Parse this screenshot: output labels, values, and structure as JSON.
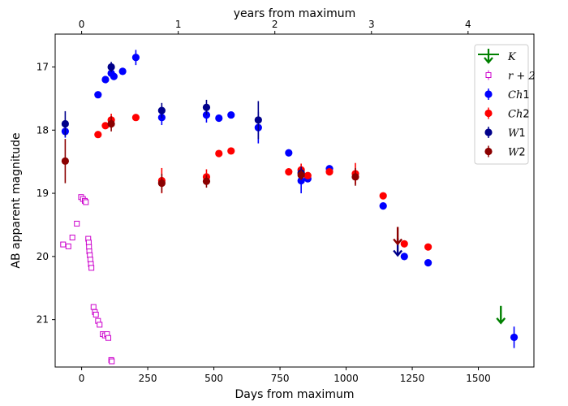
{
  "chart_data": {
    "type": "scatter",
    "xlabel": "Days from maximum",
    "ylabel": "AB apparent magnitude",
    "top_xlabel": "years from maximum",
    "xlim": [
      -100,
      1710
    ],
    "ylim": [
      21.75,
      16.48
    ],
    "y_inverted": true,
    "x_ticks": [
      0,
      250,
      500,
      750,
      1000,
      1250,
      1500
    ],
    "x_tick_labels": [
      "0",
      "250",
      "500",
      "750",
      "1000",
      "1250",
      "1500"
    ],
    "y_ticks": [
      17,
      18,
      19,
      20,
      21
    ],
    "y_tick_labels": [
      "17",
      "18",
      "19",
      "20",
      "21"
    ],
    "top_ticks_years": [
      0,
      1,
      2,
      3,
      4
    ],
    "top_tick_labels": [
      "0",
      "1",
      "2",
      "3",
      "4"
    ],
    "legend_position": "upper right",
    "series": [
      {
        "name": "K",
        "label_main": "K",
        "label_sup": "",
        "color": "#008000",
        "marker": "upper-limit-arrow",
        "points": [],
        "upper_limits": [
          {
            "x": 1585,
            "y": 20.95
          }
        ]
      },
      {
        "name": "r + 2",
        "label_main": "r + 2",
        "label_sup": "",
        "color": "#cc00cc",
        "marker": "open-square",
        "points": [
          {
            "x": -70,
            "y": 19.81
          },
          {
            "x": -50,
            "y": 19.84
          },
          {
            "x": -35,
            "y": 19.7
          },
          {
            "x": -18,
            "y": 19.48
          },
          {
            "x": -2,
            "y": 19.06
          },
          {
            "x": 5,
            "y": 19.09
          },
          {
            "x": 12,
            "y": 19.12
          },
          {
            "x": 16,
            "y": 19.14
          },
          {
            "x": 25,
            "y": 19.72
          },
          {
            "x": 27,
            "y": 19.78
          },
          {
            "x": 28,
            "y": 19.85
          },
          {
            "x": 29,
            "y": 19.92
          },
          {
            "x": 31,
            "y": 19.98
          },
          {
            "x": 33,
            "y": 20.05
          },
          {
            "x": 35,
            "y": 20.12
          },
          {
            "x": 37,
            "y": 20.18
          },
          {
            "x": 45,
            "y": 20.8
          },
          {
            "x": 50,
            "y": 20.88
          },
          {
            "x": 54,
            "y": 20.92
          },
          {
            "x": 62,
            "y": 21.02
          },
          {
            "x": 68,
            "y": 21.08
          },
          {
            "x": 80,
            "y": 21.23
          },
          {
            "x": 88,
            "y": 21.25
          },
          {
            "x": 96,
            "y": 21.23
          },
          {
            "x": 101,
            "y": 21.29
          },
          {
            "x": 112,
            "y": 21.64
          },
          {
            "x": 114,
            "y": 21.66
          }
        ],
        "errors": []
      },
      {
        "name": "Ch1",
        "label_main": "Ch",
        "label_sup": "1",
        "color": "#0000ff",
        "marker": "filled-circle",
        "points": [
          {
            "x": -62,
            "y": 18.02,
            "err": 0.1
          },
          {
            "x": 62,
            "y": 17.44,
            "err": 0.04
          },
          {
            "x": 90,
            "y": 17.2,
            "err": 0.04
          },
          {
            "x": 112,
            "y": 17.1,
            "err": 0.04
          },
          {
            "x": 122,
            "y": 17.15,
            "err": 0.04
          },
          {
            "x": 155,
            "y": 17.07,
            "err": 0.04
          },
          {
            "x": 205,
            "y": 16.85,
            "err": 0.12
          },
          {
            "x": 303,
            "y": 17.8,
            "err": 0.12
          },
          {
            "x": 472,
            "y": 17.76,
            "err": 0.12
          },
          {
            "x": 519,
            "y": 17.81,
            "err": 0.04
          },
          {
            "x": 565,
            "y": 17.76,
            "err": 0.04
          },
          {
            "x": 668,
            "y": 17.96,
            "err": 0.25
          },
          {
            "x": 783,
            "y": 18.36,
            "err": 0.04
          },
          {
            "x": 830,
            "y": 18.8,
            "err": 0.2
          },
          {
            "x": 855,
            "y": 18.77,
            "err": 0.04
          },
          {
            "x": 937,
            "y": 18.61,
            "err": 0.04
          },
          {
            "x": 1140,
            "y": 19.2,
            "err": 0.04
          },
          {
            "x": 1220,
            "y": 20.0,
            "err": 0.04
          },
          {
            "x": 1310,
            "y": 20.1,
            "err": 0.04
          },
          {
            "x": 1635,
            "y": 21.28,
            "err": 0.17
          }
        ]
      },
      {
        "name": "Ch2",
        "label_main": "Ch",
        "label_sup": "2",
        "color": "#ff0000",
        "marker": "filled-circle",
        "points": [
          {
            "x": 62,
            "y": 18.07,
            "err": 0.04
          },
          {
            "x": 90,
            "y": 17.93,
            "err": 0.04
          },
          {
            "x": 112,
            "y": 17.84,
            "err": 0.1
          },
          {
            "x": 205,
            "y": 17.8,
            "err": 0.04
          },
          {
            "x": 303,
            "y": 18.8,
            "err": 0.2
          },
          {
            "x": 472,
            "y": 18.74,
            "err": 0.12
          },
          {
            "x": 519,
            "y": 18.37,
            "err": 0.04
          },
          {
            "x": 565,
            "y": 18.33,
            "err": 0.04
          },
          {
            "x": 783,
            "y": 18.66,
            "err": 0.04
          },
          {
            "x": 830,
            "y": 18.63,
            "err": 0.1
          },
          {
            "x": 855,
            "y": 18.72,
            "err": 0.04
          },
          {
            "x": 937,
            "y": 18.66,
            "err": 0.04
          },
          {
            "x": 1035,
            "y": 18.69,
            "err": 0.17
          },
          {
            "x": 1140,
            "y": 19.04,
            "err": 0.04
          },
          {
            "x": 1220,
            "y": 19.8,
            "err": 0.04
          },
          {
            "x": 1310,
            "y": 19.85,
            "err": 0.04
          }
        ]
      },
      {
        "name": "W1",
        "label_main": "W",
        "label_sup": "1",
        "color": "#00008b",
        "marker": "filled-circle",
        "points": [
          {
            "x": -62,
            "y": 17.9,
            "err": 0.2
          },
          {
            "x": 112,
            "y": 17.0,
            "err": 0.08
          },
          {
            "x": 303,
            "y": 17.69,
            "err": 0.12
          },
          {
            "x": 472,
            "y": 17.64,
            "err": 0.12
          },
          {
            "x": 668,
            "y": 17.84,
            "err": 0.3
          },
          {
            "x": 830,
            "y": 18.68,
            "err": 0.1
          }
        ],
        "upper_limits": [
          {
            "x": 1195,
            "y": 19.88
          }
        ]
      },
      {
        "name": "W2",
        "label_main": "W",
        "label_sup": "2",
        "color": "#8b0000",
        "marker": "filled-circle",
        "points": [
          {
            "x": -62,
            "y": 18.49,
            "err": 0.35
          },
          {
            "x": 112,
            "y": 17.9,
            "err": 0.12
          },
          {
            "x": 303,
            "y": 18.84,
            "err": 0.15
          },
          {
            "x": 472,
            "y": 18.81,
            "err": 0.1
          },
          {
            "x": 830,
            "y": 18.71,
            "err": 0.08
          },
          {
            "x": 1035,
            "y": 18.74,
            "err": 0.14
          }
        ],
        "upper_limits": [
          {
            "x": 1195,
            "y": 19.7
          }
        ]
      }
    ]
  }
}
